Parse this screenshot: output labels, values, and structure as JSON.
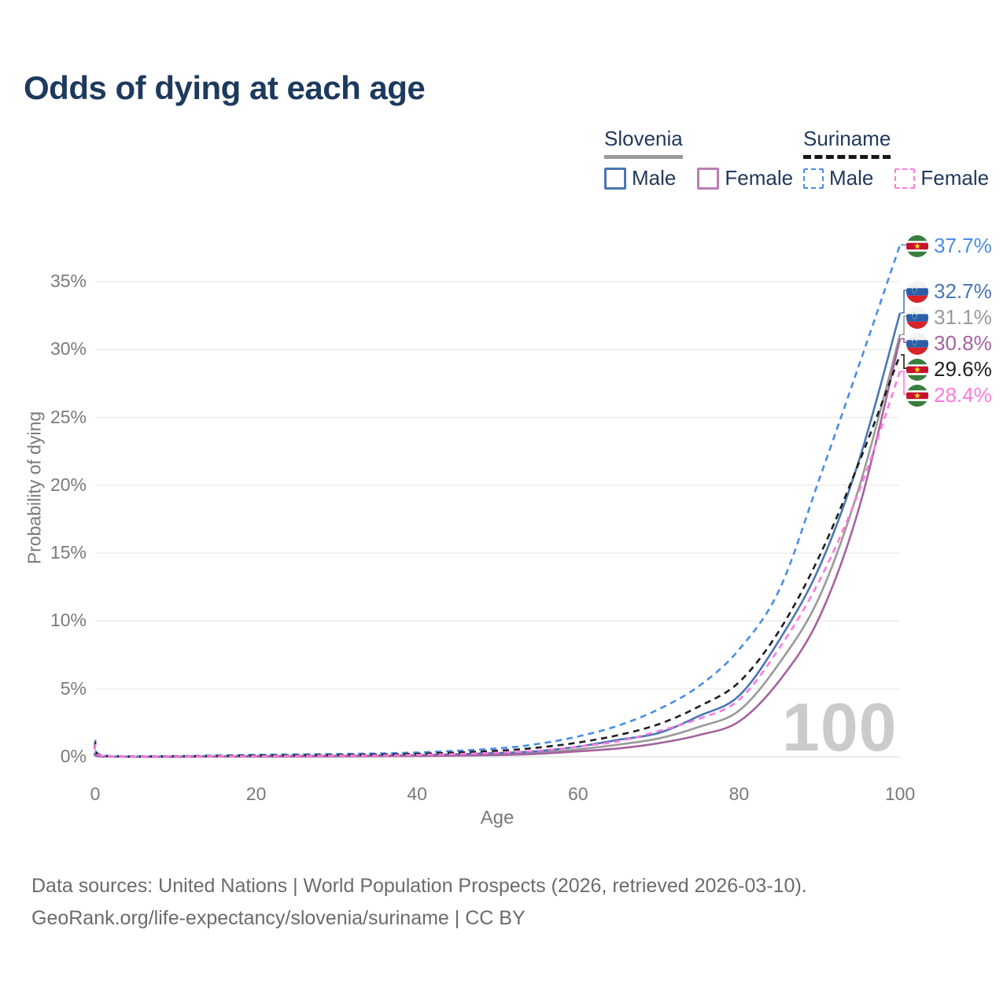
{
  "title": "Odds of dying at each age",
  "watermark": "100",
  "legend": {
    "groups": [
      {
        "name": "Slovenia",
        "line_style": "solid",
        "underline_color": "#9a9a9a",
        "items": [
          {
            "label": "Male",
            "color": "#4a76b2"
          },
          {
            "label": "Female",
            "color": "#b97fb5"
          }
        ]
      },
      {
        "name": "Suriname",
        "line_style": "dashed",
        "underline_color": "#171717",
        "items": [
          {
            "label": "Male",
            "color": "#4a8de6"
          },
          {
            "label": "Female",
            "color": "#ff7ade"
          }
        ]
      }
    ]
  },
  "end_labels": [
    {
      "value": "37.7%",
      "country": "suriname",
      "series": "Suriname — Male",
      "color": "#4a8de6"
    },
    {
      "value": "32.7%",
      "country": "slovenia",
      "series": "Slovenia — Male",
      "color": "#4a76b2"
    },
    {
      "value": "31.1%",
      "country": "slovenia",
      "series": "Slovenia — Both sexes",
      "color": "#9a9a9a"
    },
    {
      "value": "30.8%",
      "country": "slovenia",
      "series": "Slovenia — Female",
      "color": "#a5629f"
    },
    {
      "value": "29.6%",
      "country": "suriname",
      "series": "Suriname — Both sexes",
      "color": "#1f1f1f"
    },
    {
      "value": "28.4%",
      "country": "suriname",
      "series": "Suriname — Female",
      "color": "#ff7ade"
    }
  ],
  "footer": {
    "line1": "Data sources: United Nations | World Population Prospects (2026, retrieved 2026-03-10).",
    "line2": "GeoRank.org/life-expectancy/slovenia/suriname | CC BY"
  },
  "chart_data": {
    "type": "line",
    "title": "Odds of dying at each age",
    "xlabel": "Age",
    "ylabel": "Probability of dying",
    "xlim": [
      0,
      100
    ],
    "ylim": [
      0,
      38
    ],
    "x_ticks": [
      0,
      20,
      40,
      60,
      80,
      100
    ],
    "y_ticks": [
      0,
      5,
      10,
      15,
      20,
      25,
      30,
      35
    ],
    "y_tick_suffix": "%",
    "grid": "horizontal",
    "legend_position": "top-right",
    "x": [
      0,
      1,
      10,
      20,
      30,
      40,
      50,
      55,
      60,
      65,
      70,
      75,
      80,
      85,
      90,
      95,
      100
    ],
    "series": [
      {
        "name": "Slovenia — Both sexes",
        "country": "slovenia",
        "color": "#9a9a9a",
        "dash": false,
        "values": [
          0.3,
          0.025,
          0.01,
          0.035,
          0.05,
          0.09,
          0.2,
          0.3,
          0.55,
          0.9,
          1.35,
          2.2,
          3.4,
          6.9,
          11.8,
          20.0,
          31.1
        ]
      },
      {
        "name": "Slovenia — Male",
        "country": "slovenia",
        "color": "#4a76b2",
        "dash": false,
        "values": [
          0.35,
          0.03,
          0.01,
          0.05,
          0.07,
          0.12,
          0.28,
          0.42,
          0.75,
          1.25,
          1.75,
          3.0,
          4.5,
          8.6,
          14.0,
          22.0,
          32.7
        ]
      },
      {
        "name": "Slovenia — Female",
        "country": "slovenia",
        "color": "#a5629f",
        "dash": false,
        "values": [
          0.25,
          0.02,
          0.008,
          0.02,
          0.03,
          0.06,
          0.13,
          0.22,
          0.4,
          0.62,
          1.0,
          1.6,
          2.6,
          5.6,
          10.3,
          18.5,
          30.8
        ]
      },
      {
        "name": "Suriname — Male",
        "country": "suriname",
        "color": "#4a8de6",
        "dash": true,
        "values": [
          1.25,
          0.09,
          0.05,
          0.15,
          0.21,
          0.32,
          0.62,
          0.95,
          1.5,
          2.3,
          3.5,
          5.2,
          7.9,
          12.3,
          20.5,
          29.0,
          37.7
        ]
      },
      {
        "name": "Suriname — Both sexes",
        "country": "suriname",
        "color": "#1f1f1f",
        "dash": true,
        "values": [
          1.1,
          0.07,
          0.04,
          0.1,
          0.14,
          0.22,
          0.45,
          0.68,
          1.05,
          1.6,
          2.4,
          3.7,
          5.5,
          9.3,
          14.8,
          21.8,
          29.6
        ]
      },
      {
        "name": "Suriname — Female",
        "country": "suriname",
        "color": "#ff7ade",
        "dash": true,
        "values": [
          0.95,
          0.06,
          0.03,
          0.06,
          0.09,
          0.14,
          0.3,
          0.45,
          0.75,
          1.15,
          1.9,
          2.8,
          4.2,
          8.0,
          13.0,
          19.7,
          28.4
        ]
      }
    ]
  }
}
